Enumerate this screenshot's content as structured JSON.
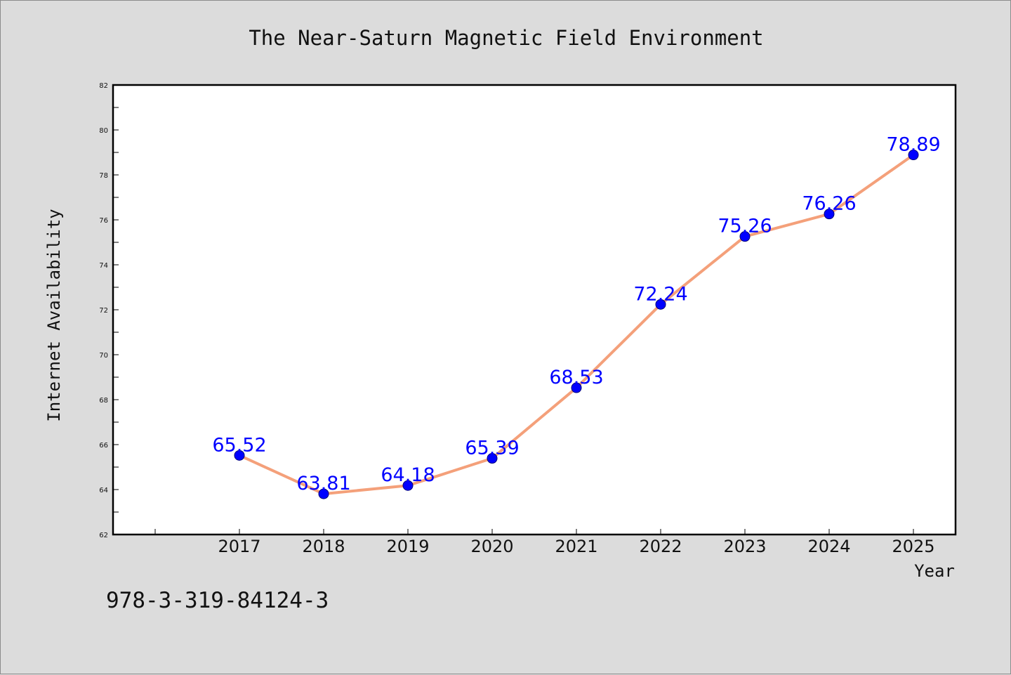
{
  "chart_data": {
    "type": "line",
    "title": "The Near-Saturn Magnetic Field Environment",
    "xlabel": "Year",
    "ylabel": "Internet Availability",
    "categories": [
      "2017",
      "2018",
      "2019",
      "2020",
      "2021",
      "2022",
      "2023",
      "2024",
      "2025"
    ],
    "series": [
      {
        "values": [
          65.52,
          63.81,
          64.18,
          65.39,
          68.53,
          72.24,
          75.26,
          76.26,
          78.89
        ],
        "line_color": "#f4a07a",
        "marker_color": "#0000ff"
      }
    ],
    "data_labels": [
      "65.52",
      "63.81",
      "64.18",
      "65.39",
      "68.53",
      "72.24",
      "75.26",
      "76.26",
      "78.89"
    ],
    "ylim": [
      62,
      82
    ],
    "yticks": [
      62,
      64,
      66,
      68,
      70,
      72,
      74,
      76,
      78,
      80,
      82
    ],
    "grid": false,
    "legend": "none"
  },
  "annotation": {
    "isbn": "978-3-319-84124-3"
  }
}
